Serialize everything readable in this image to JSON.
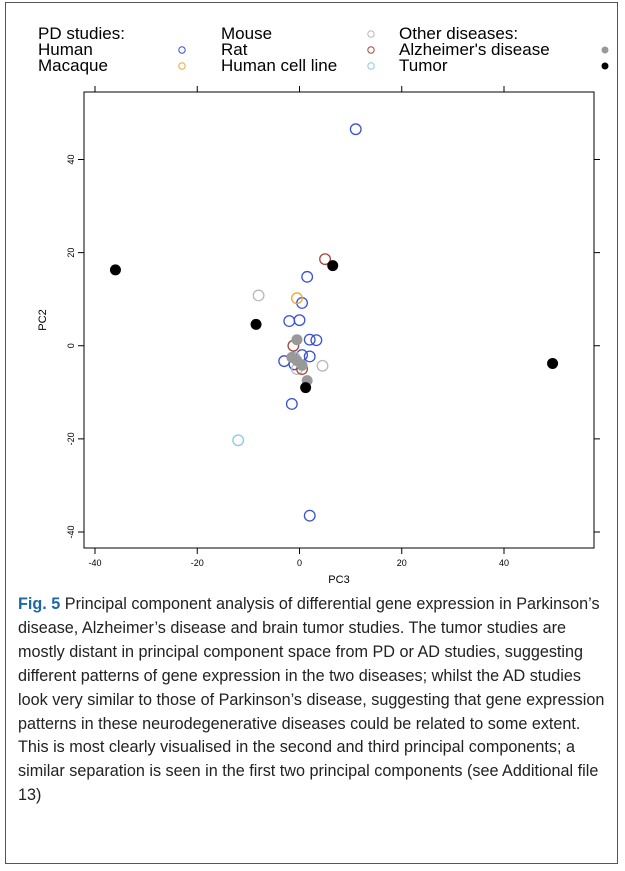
{
  "figure": {
    "fig_label": "Fig. 5",
    "caption": "Principal component analysis of differential gene expression in Parkinson’s disease, Alzheimer’s disease and brain tumor studies. The tumor studies are mostly distant in principal component space from PD or AD studies, suggesting different patterns of gene expression in the two diseases; whilst the AD studies look very similar to those of Parkinson’s disease, suggesting that gene expression patterns in these neurodegenerative diseases could be related to some extent. This is most clearly visualised in the second and third principal components; a similar separation is seen in the first two principal components (see Additional file 13)"
  },
  "legend": {
    "headers": [
      "PD studies:",
      "Other diseases:"
    ],
    "entries": [
      {
        "label": "Human",
        "color": "#3a4fd9",
        "filled": false
      },
      {
        "label": "Macaque",
        "color": "#f0a830",
        "filled": false
      },
      {
        "label": "Mouse",
        "color": "#b8b8b8",
        "filled": false
      },
      {
        "label": "Rat",
        "color": "#a0483c",
        "filled": false
      },
      {
        "label": "Human cell line",
        "color": "#8cc8e8",
        "filled": false
      },
      {
        "label": "Alzheimer's disease",
        "color": "#999999",
        "filled": true
      },
      {
        "label": "Tumor",
        "color": "#000000",
        "filled": true
      }
    ]
  },
  "chart_data": {
    "type": "scatter",
    "xlabel": "PC3",
    "ylabel": "PC2",
    "xlim": [
      -40,
      60
    ],
    "ylim": [
      -40,
      50
    ],
    "xticks": [
      -40,
      -20,
      0,
      20,
      40
    ],
    "yticks": [
      -40,
      -20,
      0,
      20,
      40
    ],
    "grid": false,
    "legend_position": "top",
    "series": [
      {
        "name": "Human",
        "color": "#3a4fd9",
        "filled": false,
        "points": [
          [
            11,
            46.5
          ],
          [
            1.5,
            14.8
          ],
          [
            0.5,
            9.2
          ],
          [
            -2,
            5.3
          ],
          [
            0,
            5.5
          ],
          [
            2,
            1.3
          ],
          [
            3.3,
            1.2
          ],
          [
            0.5,
            -2
          ],
          [
            2,
            -2.3
          ],
          [
            -3,
            -3.3
          ],
          [
            -1,
            -4
          ],
          [
            -1.5,
            -12.5
          ],
          [
            2,
            -36.5
          ]
        ]
      },
      {
        "name": "Macaque",
        "color": "#f0a830",
        "filled": false,
        "points": [
          [
            -0.5,
            10.2
          ]
        ]
      },
      {
        "name": "Mouse",
        "color": "#b8b8b8",
        "filled": false,
        "points": [
          [
            -8,
            10.8
          ],
          [
            4.5,
            -4.3
          ],
          [
            -1,
            -2.5
          ],
          [
            -0.5,
            -5
          ]
        ]
      },
      {
        "name": "Rat",
        "color": "#a0483c",
        "filled": false,
        "points": [
          [
            5,
            18.6
          ],
          [
            -1.2,
            0
          ],
          [
            0.5,
            -5
          ]
        ]
      },
      {
        "name": "Human cell line",
        "color": "#8cc8e8",
        "filled": false,
        "points": [
          [
            -12,
            -20.3
          ]
        ]
      },
      {
        "name": "Alzheimer's disease",
        "color": "#999999",
        "filled": true,
        "points": [
          [
            -0.5,
            1.3
          ],
          [
            -1.5,
            -2.5
          ],
          [
            0.5,
            -4.2
          ],
          [
            1.5,
            -7.5
          ],
          [
            -0.5,
            -3.2
          ]
        ]
      },
      {
        "name": "Tumor",
        "color": "#000000",
        "filled": true,
        "points": [
          [
            -36,
            16.3
          ],
          [
            6.5,
            17.2
          ],
          [
            -8.5,
            4.6
          ],
          [
            1.2,
            -9
          ],
          [
            49.5,
            -3.8
          ]
        ]
      }
    ]
  }
}
